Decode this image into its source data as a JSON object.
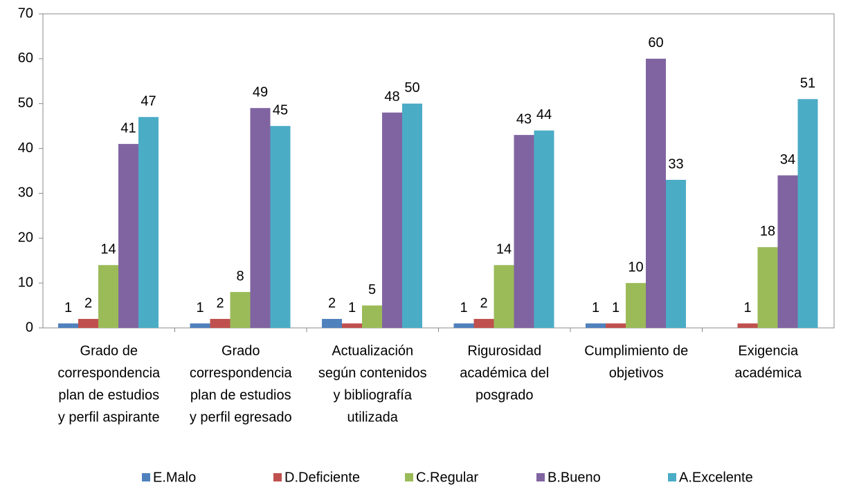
{
  "chart_data": {
    "type": "bar",
    "categories": [
      [
        "Grado de",
        "correspondencia",
        "plan de estudios",
        "y perfil aspirante"
      ],
      [
        "Grado",
        "correspondencia",
        "plan de estudios",
        "y perfil egresado"
      ],
      [
        "Actualización",
        "según contenidos",
        "y bibliografía",
        "utilizada"
      ],
      [
        "Rigurosidad",
        "académica del",
        "posgrado"
      ],
      [
        "Cumplimiento de",
        "objetivos"
      ],
      [
        "Exigencia",
        "académica"
      ]
    ],
    "series": [
      {
        "name": "E.Malo",
        "color": "#4f81bd",
        "values": [
          1,
          1,
          2,
          1,
          1,
          null
        ]
      },
      {
        "name": "D.Deficiente",
        "color": "#c0504d",
        "values": [
          2,
          2,
          1,
          2,
          1,
          1
        ]
      },
      {
        "name": "C.Regular",
        "color": "#9bbb59",
        "values": [
          14,
          8,
          5,
          14,
          10,
          18
        ]
      },
      {
        "name": "B.Bueno",
        "color": "#8064a2",
        "values": [
          41,
          49,
          48,
          43,
          60,
          34
        ]
      },
      {
        "name": "A.Excelente",
        "color": "#4bacc6",
        "values": [
          47,
          45,
          50,
          44,
          33,
          51
        ]
      }
    ],
    "ylim": [
      0,
      70
    ],
    "yticks": [
      0,
      10,
      20,
      30,
      40,
      50,
      60,
      70
    ],
    "grid": false,
    "legend": "bottom"
  }
}
